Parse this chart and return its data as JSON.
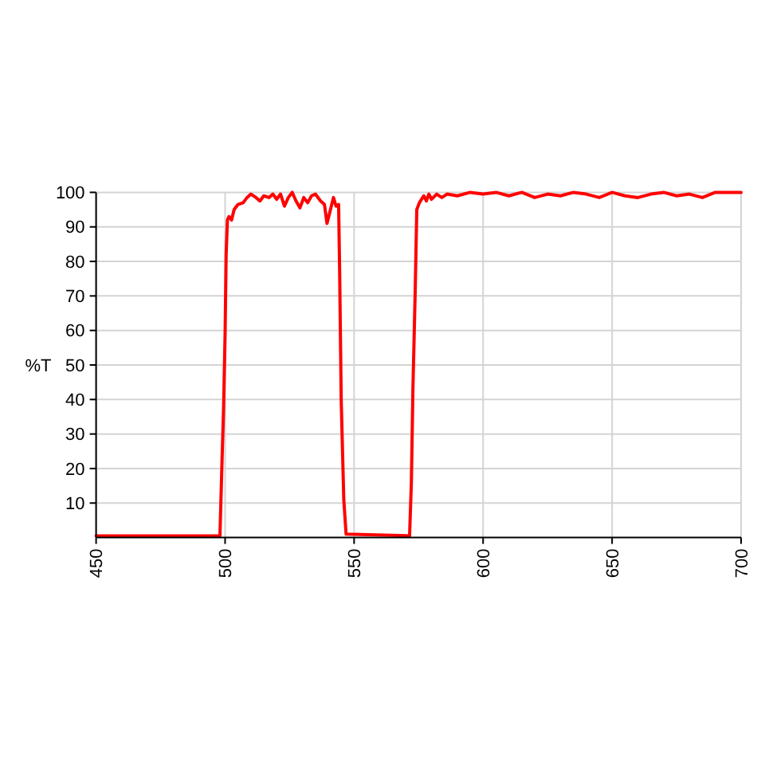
{
  "chart_data": {
    "type": "line",
    "ylabel": "%T",
    "color": "#ff0000",
    "x": [
      450,
      498,
      498.8,
      499.4,
      500,
      500.4,
      500.9,
      501.5,
      502.5,
      503.5,
      505,
      507,
      508.5,
      510,
      512,
      513.5,
      515,
      517,
      518.5,
      520,
      521.5,
      523,
      524.5,
      526,
      527.5,
      529,
      530.5,
      532,
      533.5,
      535,
      537,
      538.5,
      539.5,
      540.5,
      542,
      543,
      544,
      544.4,
      545,
      546,
      546.9,
      571.5,
      572.2,
      572.8,
      573.7,
      574.3,
      575.3,
      577,
      578,
      579,
      580,
      582,
      584,
      586,
      590,
      595,
      600,
      605,
      610,
      615,
      620,
      625,
      630,
      635,
      640,
      645,
      650,
      655,
      660,
      665,
      670,
      675,
      680,
      685,
      690,
      695,
      700
    ],
    "values": [
      0.5,
      0.5,
      22,
      37,
      59,
      82,
      92,
      93,
      92,
      95,
      96.5,
      97,
      98.5,
      99.5,
      98.5,
      97.5,
      99,
      98.5,
      99.5,
      98,
      99.5,
      96,
      98.5,
      100,
      97.5,
      95.5,
      98.5,
      97,
      99,
      99.5,
      97.5,
      96.5,
      91,
      94,
      98.5,
      96,
      96.5,
      77,
      40,
      11,
      1,
      0.5,
      16,
      43,
      72,
      95,
      97,
      99,
      97.5,
      99.5,
      98,
      99.5,
      98.5,
      99.5,
      99,
      100,
      99.5,
      100,
      99,
      100,
      98.5,
      99.5,
      99,
      100,
      99.5,
      98.5,
      100,
      99,
      98.5,
      99.5,
      100,
      99,
      99.5,
      98.5,
      100,
      100,
      100
    ],
    "xlim": [
      450,
      700
    ],
    "xticks": [
      450,
      500,
      550,
      600,
      650,
      700
    ],
    "ylim": [
      0,
      100
    ],
    "yticks": [
      10,
      20,
      30,
      40,
      50,
      60,
      70,
      80,
      90,
      100
    ],
    "grid": true
  }
}
